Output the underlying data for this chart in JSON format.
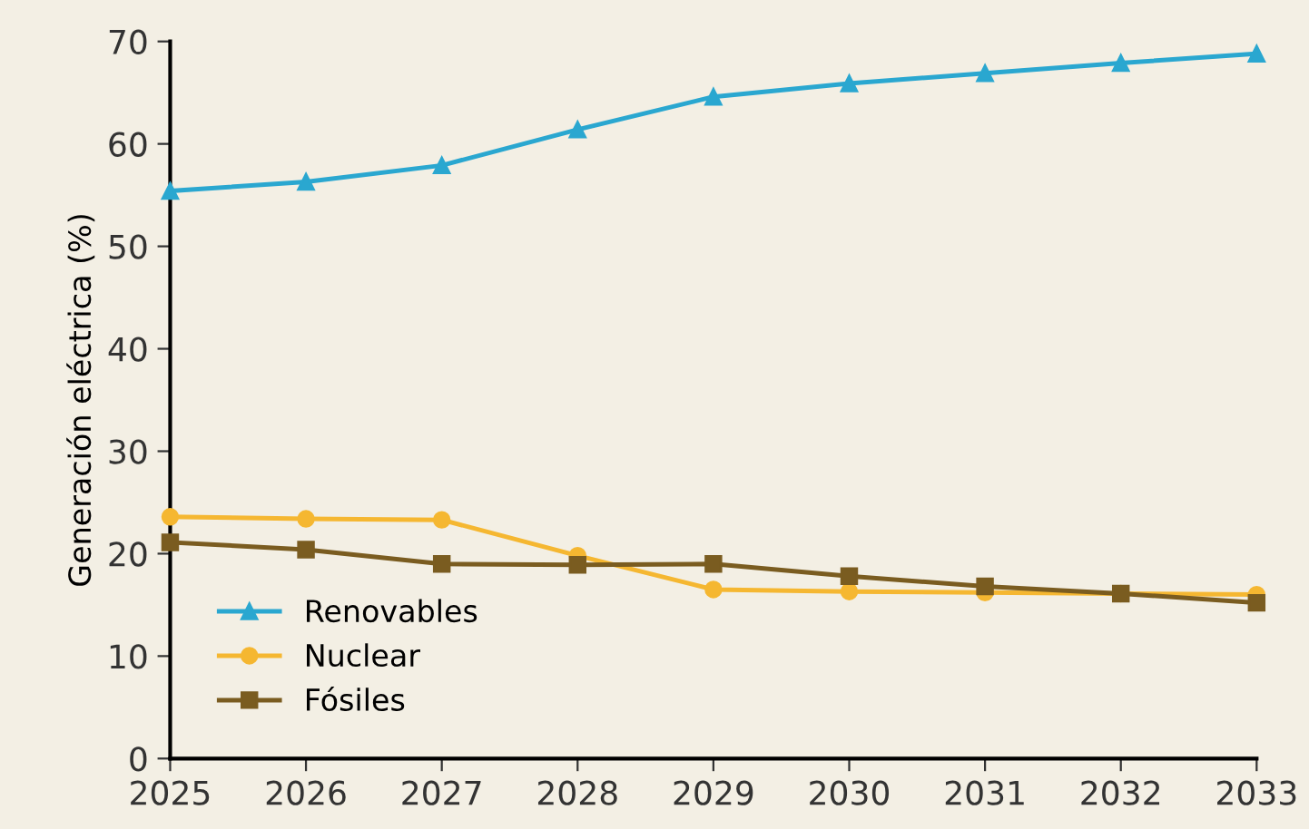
{
  "chart_data": {
    "type": "line",
    "ylabel": "Generación eléctrica (%)",
    "x": [
      2025,
      2026,
      2027,
      2028,
      2029,
      2030,
      2031,
      2032,
      2033
    ],
    "xlim": [
      2025,
      2033
    ],
    "xticks": [
      2025,
      2026,
      2027,
      2028,
      2029,
      2030,
      2031,
      2032,
      2033
    ],
    "ylim": [
      0,
      70
    ],
    "yticks": [
      0,
      10,
      20,
      30,
      40,
      50,
      60,
      70
    ],
    "grid": false,
    "legend": "bottom left",
    "line_style": "solid",
    "series": [
      {
        "name": "Renovables",
        "color": "#2aa7d0",
        "marker": "triangle",
        "values": [
          55.4,
          56.3,
          57.9,
          61.4,
          64.6,
          65.9,
          66.9,
          67.9,
          68.8
        ]
      },
      {
        "name": "Nuclear",
        "color": "#f5b731",
        "marker": "circle",
        "values": [
          23.6,
          23.4,
          23.3,
          19.8,
          16.5,
          16.3,
          16.2,
          16.1,
          16.0
        ]
      },
      {
        "name": "Fósiles",
        "color": "#7a5c20",
        "marker": "square",
        "values": [
          21.1,
          20.4,
          19.0,
          18.9,
          19.0,
          17.8,
          16.8,
          16.1,
          15.2
        ]
      }
    ]
  }
}
